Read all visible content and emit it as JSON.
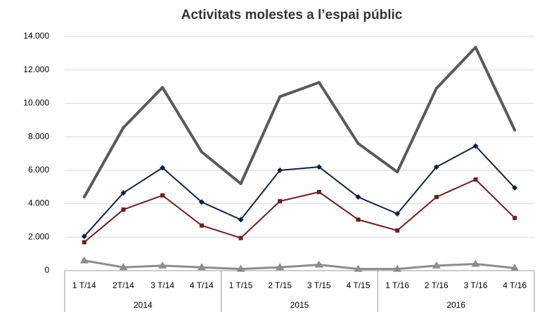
{
  "chart_data": {
    "type": "line",
    "title": "Activitats molestes a l’espai públic",
    "categories": [
      "1 T/14",
      "2T/14",
      "3 T/14",
      "4 T/14",
      "1 T/15",
      "2 T/15",
      "3 T/15",
      "4 T/15",
      "1 T/16",
      "2 T/16",
      "3 T/16",
      "4 T/16"
    ],
    "category_groups": [
      "2014",
      "2015",
      "2016"
    ],
    "series": [
      {
        "color": "#595959",
        "line_width": 4,
        "marker": "circle",
        "values": [
          4400,
          8550,
          10950,
          7100,
          5200,
          10400,
          11250,
          7600,
          5900,
          10900,
          13350,
          8400
        ]
      },
      {
        "color": "#0f2340",
        "line_width": 2,
        "marker": "diamond",
        "values": [
          2050,
          4650,
          6150,
          4100,
          3050,
          6000,
          6200,
          4400,
          3400,
          6200,
          7450,
          4950
        ]
      },
      {
        "color": "#6b1f1f",
        "line_width": 2,
        "marker": "square",
        "values": [
          1700,
          3650,
          4500,
          2700,
          1950,
          4150,
          4700,
          3050,
          2400,
          4400,
          5450,
          3150
        ]
      },
      {
        "color": "#8c8c8c",
        "line_width": 3,
        "marker": "triangle",
        "values": [
          600,
          200,
          300,
          200,
          100,
          200,
          350,
          100,
          100,
          300,
          400,
          150
        ]
      }
    ],
    "ylim": [
      0,
      14000
    ],
    "yticks": [
      0,
      {
        "value": 2000,
        "label": "2.000"
      },
      {
        "value": 4000,
        "label": "4.000"
      },
      {
        "value": 6000,
        "label": "6.000"
      },
      {
        "value": 8000,
        "label": "8.000"
      },
      {
        "value": 10000,
        "label": "10.000"
      },
      {
        "value": 12000,
        "label": "12.000"
      },
      {
        "value": 14000,
        "label": "14.000"
      }
    ],
    "grid": true
  }
}
